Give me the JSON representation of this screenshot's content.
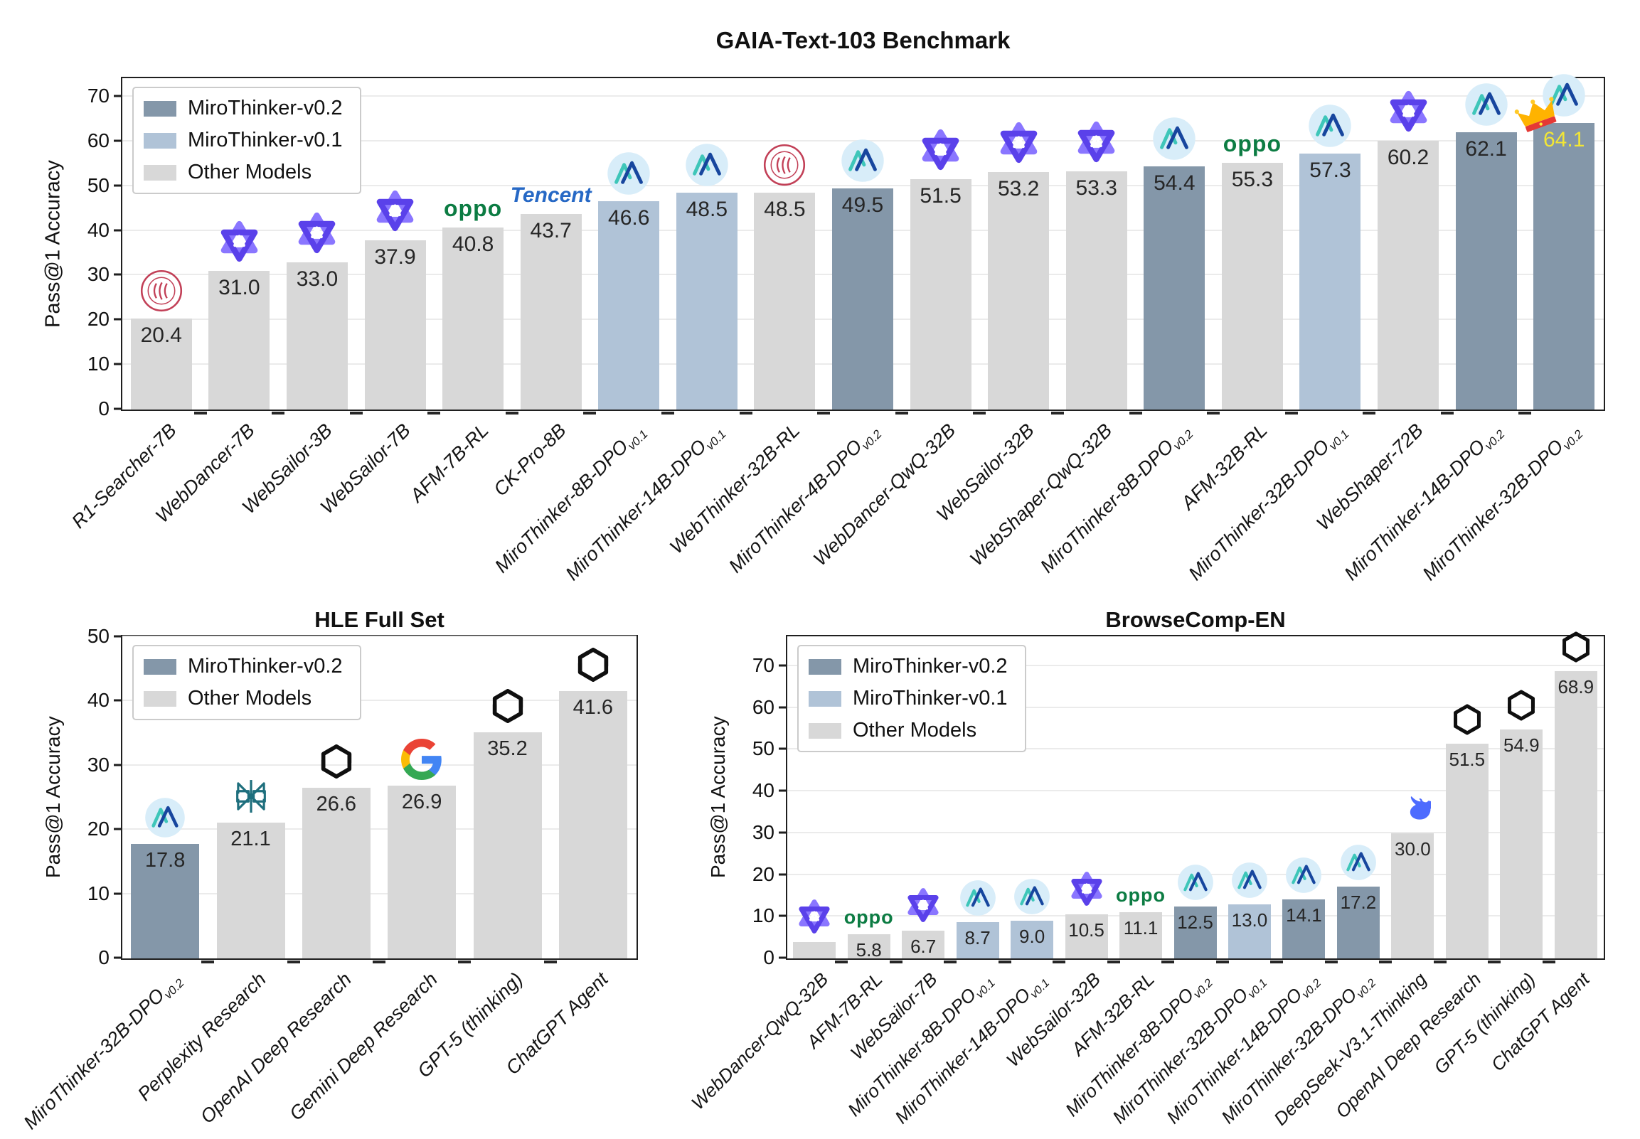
{
  "colors": {
    "mirothinker_v02": "#8497a9",
    "mirothinker_v01": "#b0c3d7",
    "other_models": "#d8d8d8",
    "crowned_value_text": "#f2e635",
    "axis_text": "#111111",
    "grid": "#ebebeb",
    "oppo_green": "#0c7c43",
    "tencent_blue": "#2668c5",
    "deepseek_blue": "#4D6BFE",
    "perplexity_teal": "#1e6f7d",
    "renmin_red": "#c24057"
  },
  "chart_data": [
    {
      "type": "bar",
      "title": "GAIA-Text-103 Benchmark",
      "ylabel": "Pass@1 Accuracy",
      "ylim": [
        0,
        74
      ],
      "yticks": [
        0,
        10,
        20,
        30,
        40,
        50,
        60,
        70
      ],
      "grid": true,
      "legend_position": "upper-left",
      "legend": [
        {
          "label": "MiroThinker-v0.2",
          "color_key": "mirothinker_v02"
        },
        {
          "label": "MiroThinker-v0.1",
          "color_key": "mirothinker_v01"
        },
        {
          "label": "Other Models",
          "color_key": "other_models"
        }
      ],
      "bars": [
        {
          "label": "R1-Searcher-7B",
          "value": 20.4,
          "value_label": "20.4",
          "group": "other_models",
          "icon": "renmin-university-icon"
        },
        {
          "label": "WebDancer-7B",
          "value": 31.0,
          "value_label": "31.0",
          "group": "other_models",
          "icon": "tongyi-icon"
        },
        {
          "label": "WebSailor-3B",
          "value": 33.0,
          "value_label": "33.0",
          "group": "other_models",
          "icon": "tongyi-icon"
        },
        {
          "label": "WebSailor-7B",
          "value": 37.9,
          "value_label": "37.9",
          "group": "other_models",
          "icon": "tongyi-icon"
        },
        {
          "label": "AFM-7B-RL",
          "value": 40.8,
          "value_label": "40.8",
          "group": "other_models",
          "icon": "oppo-icon"
        },
        {
          "label": "CK-Pro-8B",
          "value": 43.7,
          "value_label": "43.7",
          "group": "other_models",
          "icon": "tencent-icon"
        },
        {
          "label": "MiroThinker-8B-DPO",
          "label_sub": "v0.1",
          "value": 46.6,
          "value_label": "46.6",
          "group": "mirothinker_v01",
          "icon": "mirothinker-icon"
        },
        {
          "label": "MiroThinker-14B-DPO",
          "label_sub": "v0.1",
          "value": 48.5,
          "value_label": "48.5",
          "group": "mirothinker_v01",
          "icon": "mirothinker-icon"
        },
        {
          "label": "WebThinker-32B-RL",
          "value": 48.5,
          "value_label": "48.5",
          "group": "other_models",
          "icon": "renmin-university-icon"
        },
        {
          "label": "MiroThinker-4B-DPO",
          "label_sub": "v0.2",
          "value": 49.5,
          "value_label": "49.5",
          "group": "mirothinker_v02",
          "icon": "mirothinker-icon"
        },
        {
          "label": "WebDancer-QwQ-32B",
          "value": 51.5,
          "value_label": "51.5",
          "group": "other_models",
          "icon": "tongyi-icon"
        },
        {
          "label": "WebSailor-32B",
          "value": 53.2,
          "value_label": "53.2",
          "group": "other_models",
          "icon": "tongyi-icon"
        },
        {
          "label": "WebShaper-QwQ-32B",
          "value": 53.3,
          "value_label": "53.3",
          "group": "other_models",
          "icon": "tongyi-icon"
        },
        {
          "label": "MiroThinker-8B-DPO",
          "label_sub": "v0.2",
          "value": 54.4,
          "value_label": "54.4",
          "group": "mirothinker_v02",
          "icon": "mirothinker-icon"
        },
        {
          "label": "AFM-32B-RL",
          "value": 55.3,
          "value_label": "55.3",
          "group": "other_models",
          "icon": "oppo-icon"
        },
        {
          "label": "MiroThinker-32B-DPO",
          "label_sub": "v0.1",
          "value": 57.3,
          "value_label": "57.3",
          "group": "mirothinker_v01",
          "icon": "mirothinker-icon"
        },
        {
          "label": "WebShaper-72B",
          "value": 60.2,
          "value_label": "60.2",
          "group": "other_models",
          "icon": "tongyi-icon"
        },
        {
          "label": "MiroThinker-14B-DPO",
          "label_sub": "v0.2",
          "value": 62.1,
          "value_label": "62.1",
          "group": "mirothinker_v02",
          "icon": "mirothinker-icon"
        },
        {
          "label": "MiroThinker-32B-DPO",
          "label_sub": "v0.2",
          "value": 64.1,
          "value_label": "64.1",
          "group": "mirothinker_v02",
          "icon": "mirothinker-icon",
          "crown": true,
          "value_color_key": "crowned_value_text"
        }
      ]
    },
    {
      "type": "bar",
      "title": "HLE Full Set",
      "ylabel": "Pass@1 Accuracy",
      "ylim": [
        0,
        50
      ],
      "yticks": [
        0,
        10,
        20,
        30,
        40,
        50
      ],
      "grid": true,
      "legend_position": "upper-left",
      "legend": [
        {
          "label": "MiroThinker-v0.2",
          "color_key": "mirothinker_v02"
        },
        {
          "label": "Other Models",
          "color_key": "other_models"
        }
      ],
      "bars": [
        {
          "label": "MiroThinker-32B-DPO",
          "label_sub": "v0.2",
          "value": 17.8,
          "value_label": "17.8",
          "group": "mirothinker_v02",
          "icon": "mirothinker-icon"
        },
        {
          "label": "Perplexity Research",
          "value": 21.1,
          "value_label": "21.1",
          "group": "other_models",
          "icon": "perplexity-icon"
        },
        {
          "label": "OpenAI Deep Research",
          "value": 26.6,
          "value_label": "26.6",
          "group": "other_models",
          "icon": "openai-icon"
        },
        {
          "label": "Gemini Deep Research",
          "value": 26.9,
          "value_label": "26.9",
          "group": "other_models",
          "icon": "google-icon"
        },
        {
          "label": "GPT-5 (thinking)",
          "value": 35.2,
          "value_label": "35.2",
          "group": "other_models",
          "icon": "openai-icon"
        },
        {
          "label": "ChatGPT Agent",
          "value": 41.6,
          "value_label": "41.6",
          "group": "other_models",
          "icon": "openai-icon"
        }
      ]
    },
    {
      "type": "bar",
      "title": "BrowseComp-EN",
      "ylabel": "Pass@1 Accuracy",
      "ylim": [
        0,
        77
      ],
      "yticks": [
        0,
        10,
        20,
        30,
        40,
        50,
        60,
        70
      ],
      "grid": true,
      "legend_position": "upper-left",
      "legend": [
        {
          "label": "MiroThinker-v0.2",
          "color_key": "mirothinker_v02"
        },
        {
          "label": "MiroThinker-v0.1",
          "color_key": "mirothinker_v01"
        },
        {
          "label": "Other Models",
          "color_key": "other_models"
        }
      ],
      "bars": [
        {
          "label": "WebDancer-QwQ-32B",
          "value": 4.0,
          "value_label": "",
          "group": "other_models",
          "icon": "tongyi-icon"
        },
        {
          "label": "AFM-7B-RL",
          "value": 5.8,
          "value_label": "5.8",
          "group": "other_models",
          "icon": "oppo-icon"
        },
        {
          "label": "WebSailor-7B",
          "value": 6.7,
          "value_label": "6.7",
          "group": "other_models",
          "icon": "tongyi-icon"
        },
        {
          "label": "MiroThinker-8B-DPO",
          "label_sub": "v0.1",
          "value": 8.7,
          "value_label": "8.7",
          "group": "mirothinker_v01",
          "icon": "mirothinker-icon"
        },
        {
          "label": "MiroThinker-14B-DPO",
          "label_sub": "v0.1",
          "value": 9.0,
          "value_label": "9.0",
          "group": "mirothinker_v01",
          "icon": "mirothinker-icon"
        },
        {
          "label": "WebSailor-32B",
          "value": 10.5,
          "value_label": "10.5",
          "group": "other_models",
          "icon": "tongyi-icon"
        },
        {
          "label": "AFM-32B-RL",
          "value": 11.1,
          "value_label": "11.1",
          "group": "other_models",
          "icon": "oppo-icon"
        },
        {
          "label": "MiroThinker-8B-DPO",
          "label_sub": "v0.2",
          "value": 12.5,
          "value_label": "12.5",
          "group": "mirothinker_v02",
          "icon": "mirothinker-icon"
        },
        {
          "label": "MiroThinker-32B-DPO",
          "label_sub": "v0.1",
          "value": 13.0,
          "value_label": "13.0",
          "group": "mirothinker_v01",
          "icon": "mirothinker-icon"
        },
        {
          "label": "MiroThinker-14B-DPO",
          "label_sub": "v0.2",
          "value": 14.1,
          "value_label": "14.1",
          "group": "mirothinker_v02",
          "icon": "mirothinker-icon"
        },
        {
          "label": "MiroThinker-32B-DPO",
          "label_sub": "v0.2",
          "value": 17.2,
          "value_label": "17.2",
          "group": "mirothinker_v02",
          "icon": "mirothinker-icon"
        },
        {
          "label": "DeepSeek-V3.1-Thinking",
          "value": 30.0,
          "value_label": "30.0",
          "group": "other_models",
          "icon": "deepseek-icon"
        },
        {
          "label": "OpenAI Deep Research",
          "value": 51.5,
          "value_label": "51.5",
          "group": "other_models",
          "icon": "openai-icon"
        },
        {
          "label": "GPT-5 (thinking)",
          "value": 54.9,
          "value_label": "54.9",
          "group": "other_models",
          "icon": "openai-icon"
        },
        {
          "label": "ChatGPT Agent",
          "value": 68.9,
          "value_label": "68.9",
          "group": "other_models",
          "icon": "openai-icon"
        }
      ]
    }
  ]
}
